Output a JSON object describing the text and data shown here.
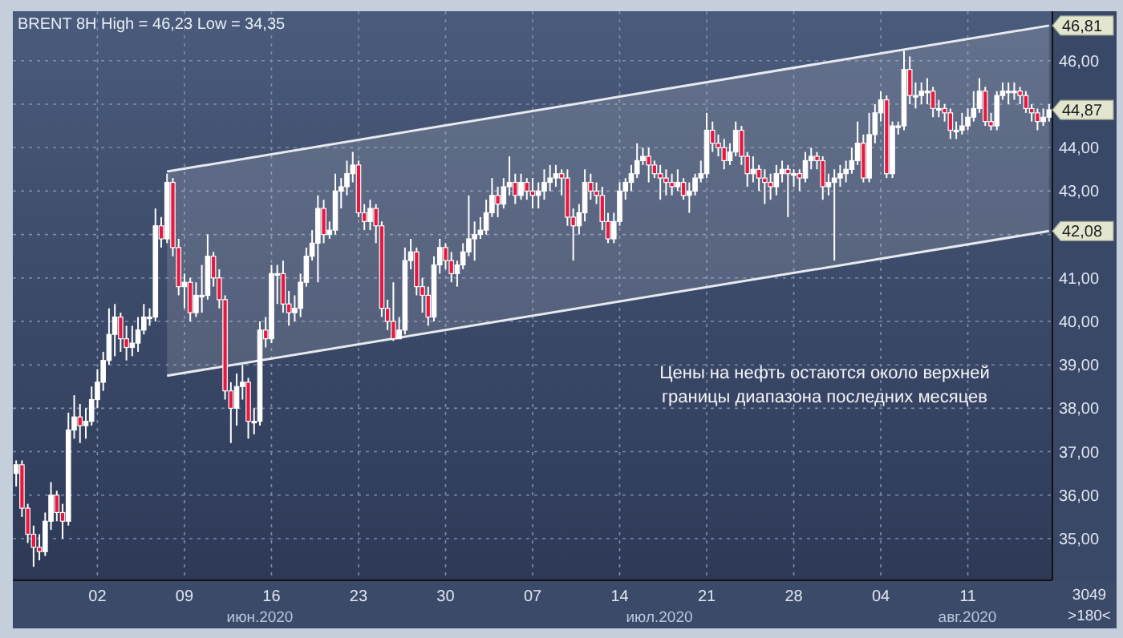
{
  "chart_data": {
    "type": "candlestick",
    "title": "BRENT 8H High = 46,23 Low = 34,35",
    "categories": [
      null,
      null,
      null,
      null,
      null,
      null,
      null,
      null,
      null,
      null,
      null,
      null,
      null,
      null,
      "02",
      null,
      null,
      null,
      null,
      null,
      null,
      null,
      null,
      null,
      null,
      null,
      null,
      null,
      null,
      "09",
      null,
      null,
      null,
      null,
      null,
      null,
      null,
      null,
      null,
      null,
      null,
      null,
      null,
      null,
      "16",
      null,
      null,
      null,
      null,
      null,
      null,
      null,
      null,
      null,
      null,
      null,
      null,
      null,
      null,
      "23",
      null,
      null,
      null,
      null,
      null,
      null,
      null,
      null,
      null,
      null,
      null,
      null,
      null,
      null,
      "30",
      null,
      null,
      null,
      null,
      null,
      null,
      null,
      null,
      null,
      null,
      null,
      null,
      null,
      null,
      "07",
      null,
      null,
      null,
      null,
      null,
      null,
      null,
      null,
      null,
      null,
      null,
      null,
      null,
      null,
      "14",
      null,
      null,
      null,
      null,
      null,
      null,
      null,
      null,
      null,
      null,
      null,
      null,
      null,
      null,
      "21",
      null,
      null,
      null,
      null,
      null,
      null,
      null,
      null,
      null,
      null,
      null,
      null,
      null,
      null,
      "28",
      null,
      null,
      null,
      null,
      null,
      null,
      null,
      null,
      null,
      null,
      null,
      null,
      null,
      null,
      "04",
      null,
      null,
      null,
      null,
      null,
      null,
      null,
      null,
      null,
      null,
      null,
      null,
      null,
      null,
      "11",
      null,
      null,
      null,
      null,
      null,
      null,
      null,
      null,
      null,
      null,
      null,
      null,
      null,
      null
    ],
    "ohlc": [
      [
        36.5,
        36.8,
        36.2,
        36.7
      ],
      [
        36.7,
        36.8,
        35.5,
        35.7
      ],
      [
        35.7,
        35.8,
        34.9,
        35.1
      ],
      [
        35.1,
        35.3,
        34.35,
        34.8
      ],
      [
        34.8,
        35.1,
        34.5,
        34.7
      ],
      [
        34.7,
        35.6,
        34.6,
        35.4
      ],
      [
        35.4,
        36.3,
        35.2,
        36.0
      ],
      [
        36.0,
        36.1,
        35.4,
        35.6
      ],
      [
        35.6,
        35.8,
        35.0,
        35.4
      ],
      [
        35.4,
        37.9,
        35.3,
        37.5
      ],
      [
        37.5,
        38.3,
        37.3,
        37.8
      ],
      [
        37.8,
        38.1,
        37.2,
        37.6
      ],
      [
        37.6,
        38.0,
        37.3,
        37.7
      ],
      [
        37.7,
        38.5,
        37.6,
        38.2
      ],
      [
        38.2,
        38.9,
        38.0,
        38.6
      ],
      [
        38.6,
        39.3,
        38.4,
        39.1
      ],
      [
        39.1,
        40.3,
        39.0,
        39.7
      ],
      [
        39.7,
        40.4,
        39.2,
        40.1
      ],
      [
        40.1,
        40.2,
        39.3,
        39.6
      ],
      [
        39.6,
        39.9,
        39.1,
        39.4
      ],
      [
        39.4,
        39.9,
        39.2,
        39.5
      ],
      [
        39.5,
        40.1,
        39.3,
        39.8
      ],
      [
        39.8,
        40.4,
        39.7,
        40.1
      ],
      [
        40.1,
        40.3,
        39.9,
        40.1
      ],
      [
        40.1,
        42.6,
        40.0,
        42.2
      ],
      [
        42.2,
        42.4,
        41.7,
        41.9
      ],
      [
        41.9,
        43.4,
        41.8,
        43.2
      ],
      [
        43.2,
        43.3,
        41.5,
        41.7
      ],
      [
        41.7,
        41.9,
        40.6,
        40.8
      ],
      [
        40.8,
        41.1,
        40.3,
        40.9
      ],
      [
        40.9,
        41.0,
        40.0,
        40.2
      ],
      [
        40.2,
        40.9,
        40.1,
        40.6
      ],
      [
        40.6,
        41.3,
        40.2,
        40.6
      ],
      [
        40.6,
        42.0,
        40.5,
        41.5
      ],
      [
        41.5,
        41.6,
        40.8,
        41.0
      ],
      [
        41.0,
        41.2,
        40.3,
        40.5
      ],
      [
        40.5,
        40.6,
        38.2,
        38.4
      ],
      [
        38.4,
        38.6,
        37.2,
        38.0
      ],
      [
        38.0,
        38.8,
        37.6,
        38.5
      ],
      [
        38.5,
        39.0,
        38.2,
        38.6
      ],
      [
        38.6,
        38.7,
        37.3,
        37.7
      ],
      [
        37.7,
        38.0,
        37.4,
        37.7
      ],
      [
        37.7,
        40.0,
        37.6,
        39.8
      ],
      [
        39.8,
        40.1,
        39.4,
        39.6
      ],
      [
        39.6,
        41.3,
        39.5,
        41.1
      ],
      [
        41.1,
        41.3,
        40.4,
        41.1
      ],
      [
        41.1,
        41.4,
        40.2,
        40.4
      ],
      [
        40.4,
        40.7,
        39.9,
        40.2
      ],
      [
        40.2,
        40.6,
        40.0,
        40.3
      ],
      [
        40.3,
        41.1,
        40.1,
        40.9
      ],
      [
        40.9,
        41.7,
        40.8,
        41.5
      ],
      [
        41.5,
        42.1,
        41.4,
        41.8
      ],
      [
        41.8,
        42.9,
        40.9,
        42.6
      ],
      [
        42.6,
        42.8,
        41.8,
        42.0
      ],
      [
        42.0,
        42.3,
        41.9,
        42.1
      ],
      [
        42.1,
        43.4,
        42.0,
        43.0
      ],
      [
        43.0,
        43.3,
        42.6,
        43.1
      ],
      [
        43.1,
        43.7,
        42.9,
        43.4
      ],
      [
        43.4,
        43.9,
        43.2,
        43.6
      ],
      [
        43.6,
        43.7,
        42.4,
        42.5
      ],
      [
        42.5,
        42.7,
        42.1,
        42.3
      ],
      [
        42.3,
        42.8,
        42.1,
        42.6
      ],
      [
        42.6,
        42.7,
        41.8,
        42.2
      ],
      [
        42.2,
        42.3,
        40.1,
        40.3
      ],
      [
        40.3,
        40.5,
        39.8,
        40.0
      ],
      [
        40.0,
        40.9,
        39.55,
        39.6
      ],
      [
        39.6,
        40.1,
        39.6,
        39.8
      ],
      [
        39.8,
        41.7,
        39.7,
        41.4
      ],
      [
        41.4,
        41.9,
        41.2,
        41.6
      ],
      [
        41.6,
        41.7,
        40.6,
        40.8
      ],
      [
        40.8,
        41.0,
        40.2,
        40.6
      ],
      [
        40.6,
        40.8,
        39.9,
        40.1
      ],
      [
        40.1,
        41.5,
        40.0,
        41.3
      ],
      [
        41.3,
        41.9,
        41.1,
        41.7
      ],
      [
        41.7,
        41.8,
        41.2,
        41.4
      ],
      [
        41.4,
        41.6,
        40.9,
        41.1
      ],
      [
        41.1,
        41.4,
        40.8,
        41.3
      ],
      [
        41.3,
        41.8,
        41.2,
        41.6
      ],
      [
        41.6,
        42.9,
        41.5,
        41.9
      ],
      [
        41.9,
        42.3,
        41.4,
        42.0
      ],
      [
        42.0,
        42.4,
        41.9,
        42.1
      ],
      [
        42.1,
        42.8,
        42.0,
        42.5
      ],
      [
        42.5,
        43.3,
        42.4,
        42.9
      ],
      [
        42.9,
        43.1,
        42.4,
        42.7
      ],
      [
        42.7,
        43.3,
        42.6,
        43.1
      ],
      [
        43.1,
        43.8,
        42.9,
        43.2
      ],
      [
        43.2,
        43.4,
        42.7,
        42.9
      ],
      [
        42.9,
        43.4,
        42.8,
        43.2
      ],
      [
        43.2,
        43.3,
        42.8,
        43.0
      ],
      [
        43.0,
        43.3,
        42.6,
        42.9
      ],
      [
        42.9,
        43.2,
        42.6,
        43.0
      ],
      [
        43.0,
        43.5,
        42.8,
        43.2
      ],
      [
        43.2,
        43.6,
        43.0,
        43.3
      ],
      [
        43.3,
        43.6,
        43.1,
        43.4
      ],
      [
        43.4,
        43.5,
        42.9,
        43.3
      ],
      [
        43.3,
        43.5,
        42.2,
        42.4
      ],
      [
        42.4,
        42.6,
        41.4,
        42.2
      ],
      [
        42.2,
        42.7,
        42.0,
        42.5
      ],
      [
        42.5,
        43.5,
        42.3,
        43.2
      ],
      [
        43.2,
        43.4,
        42.8,
        43.0
      ],
      [
        43.0,
        43.2,
        42.7,
        42.9
      ],
      [
        42.9,
        43.1,
        42.1,
        42.3
      ],
      [
        42.3,
        42.5,
        41.8,
        41.9
      ],
      [
        41.9,
        42.5,
        41.8,
        42.3
      ],
      [
        42.3,
        43.2,
        42.2,
        43.0
      ],
      [
        43.0,
        43.3,
        42.8,
        43.2
      ],
      [
        43.2,
        43.6,
        43.0,
        43.4
      ],
      [
        43.4,
        44.1,
        43.3,
        43.7
      ],
      [
        43.7,
        44.0,
        43.6,
        43.8
      ],
      [
        43.8,
        44.0,
        43.2,
        43.6
      ],
      [
        43.6,
        43.7,
        43.3,
        43.4
      ],
      [
        43.4,
        43.6,
        42.8,
        43.3
      ],
      [
        43.3,
        43.5,
        42.9,
        43.2
      ],
      [
        43.2,
        43.4,
        42.9,
        43.1
      ],
      [
        43.1,
        43.5,
        43.0,
        43.2
      ],
      [
        43.2,
        43.3,
        42.8,
        42.9
      ],
      [
        42.9,
        43.2,
        42.5,
        43.0
      ],
      [
        43.0,
        43.4,
        42.9,
        43.3
      ],
      [
        43.3,
        43.7,
        43.2,
        43.4
      ],
      [
        43.4,
        44.8,
        43.3,
        44.4
      ],
      [
        44.4,
        44.6,
        43.9,
        44.1
      ],
      [
        44.1,
        44.3,
        43.8,
        44.0
      ],
      [
        44.0,
        44.2,
        43.5,
        43.7
      ],
      [
        43.7,
        44.1,
        43.6,
        43.9
      ],
      [
        43.9,
        44.6,
        43.8,
        44.4
      ],
      [
        44.4,
        44.5,
        43.6,
        43.8
      ],
      [
        43.8,
        43.9,
        43.1,
        43.4
      ],
      [
        43.4,
        43.8,
        43.2,
        43.5
      ],
      [
        43.5,
        43.6,
        43.0,
        43.3
      ],
      [
        43.3,
        43.5,
        42.7,
        43.2
      ],
      [
        43.2,
        43.4,
        42.8,
        43.1
      ],
      [
        43.1,
        43.6,
        42.9,
        43.4
      ],
      [
        43.4,
        43.7,
        43.2,
        43.5
      ],
      [
        43.5,
        43.6,
        42.4,
        43.4
      ],
      [
        43.4,
        43.5,
        43.1,
        43.4
      ],
      [
        43.4,
        43.5,
        43.0,
        43.3
      ],
      [
        43.3,
        43.9,
        43.2,
        43.7
      ],
      [
        43.7,
        44.0,
        43.5,
        43.8
      ],
      [
        43.8,
        43.9,
        43.5,
        43.7
      ],
      [
        43.7,
        43.8,
        42.8,
        43.1
      ],
      [
        43.1,
        43.4,
        42.9,
        43.2
      ],
      [
        43.2,
        43.5,
        41.4,
        43.3
      ],
      [
        43.3,
        43.6,
        43.1,
        43.4
      ],
      [
        43.4,
        43.7,
        43.2,
        43.5
      ],
      [
        43.5,
        44.0,
        43.4,
        43.7
      ],
      [
        43.7,
        44.6,
        43.6,
        44.1
      ],
      [
        44.1,
        44.3,
        43.2,
        43.3
      ],
      [
        43.3,
        44.8,
        43.2,
        44.3
      ],
      [
        44.3,
        45.0,
        44.1,
        44.8
      ],
      [
        44.8,
        45.3,
        44.6,
        45.1
      ],
      [
        45.1,
        45.2,
        43.3,
        43.4
      ],
      [
        43.4,
        44.6,
        43.3,
        44.5
      ],
      [
        44.5,
        44.6,
        44.3,
        44.5
      ],
      [
        44.5,
        46.23,
        44.4,
        45.8
      ],
      [
        45.8,
        46.1,
        45.0,
        45.2
      ],
      [
        45.2,
        45.5,
        44.9,
        45.2
      ],
      [
        45.2,
        45.5,
        45.0,
        45.3
      ],
      [
        45.3,
        45.6,
        45.0,
        45.3
      ],
      [
        45.3,
        45.4,
        44.7,
        44.9
      ],
      [
        44.9,
        45.1,
        44.7,
        44.9
      ],
      [
        44.9,
        45.0,
        44.6,
        44.8
      ],
      [
        44.8,
        44.9,
        44.2,
        44.4
      ],
      [
        44.4,
        44.6,
        44.2,
        44.4
      ],
      [
        44.4,
        44.8,
        44.3,
        44.5
      ],
      [
        44.5,
        44.9,
        44.4,
        44.7
      ],
      [
        44.7,
        45.3,
        44.6,
        44.9
      ],
      [
        44.9,
        45.6,
        44.8,
        45.3
      ],
      [
        45.3,
        45.4,
        44.5,
        44.6
      ],
      [
        44.6,
        44.8,
        44.4,
        44.5
      ],
      [
        44.5,
        45.3,
        44.4,
        45.2
      ],
      [
        45.2,
        45.5,
        45.1,
        45.3
      ],
      [
        45.3,
        45.5,
        45.0,
        45.3
      ],
      [
        45.3,
        45.5,
        45.1,
        45.3
      ],
      [
        45.3,
        45.4,
        45.0,
        45.2
      ],
      [
        45.2,
        45.3,
        44.8,
        44.9
      ],
      [
        44.9,
        45.0,
        44.6,
        44.8
      ],
      [
        44.8,
        44.9,
        44.4,
        44.6
      ],
      [
        44.6,
        44.9,
        44.5,
        44.7
      ],
      [
        44.7,
        45.0,
        44.6,
        44.87
      ]
    ],
    "series": [
      {
        "type": "line",
        "color": "#e6e9ef",
        "values": [
          null,
          null,
          null,
          null,
          null,
          null,
          null,
          null,
          null,
          null,
          null,
          null,
          null,
          null,
          null,
          null,
          null,
          null,
          null,
          null,
          null,
          null,
          null,
          null,
          null,
          null,
          43.45,
          null,
          null,
          null,
          null,
          null,
          null,
          null,
          null,
          null,
          null,
          null,
          null,
          null,
          null,
          null,
          null,
          null,
          null,
          null,
          null,
          null,
          null,
          null,
          null,
          null,
          null,
          null,
          null,
          null,
          null,
          null,
          null,
          null,
          null,
          null,
          null,
          null,
          null,
          null,
          null,
          null,
          null,
          null,
          null,
          null,
          null,
          null,
          null,
          null,
          null,
          null,
          null,
          null,
          null,
          null,
          null,
          null,
          null,
          null,
          null,
          null,
          null,
          null,
          null,
          null,
          null,
          null,
          null,
          null,
          null,
          null,
          null,
          null,
          null,
          null,
          null,
          null,
          null,
          null,
          null,
          null,
          null,
          null,
          null,
          null,
          null,
          null,
          null,
          null,
          null,
          null,
          null,
          null,
          null,
          null,
          null,
          null,
          null,
          null,
          null,
          null,
          null,
          null,
          null,
          null,
          null,
          null,
          null,
          null,
          null,
          null,
          null,
          null,
          null,
          null,
          null,
          null,
          null,
          null,
          null,
          null,
          null,
          null,
          null,
          null,
          null,
          null,
          null,
          null,
          null,
          null,
          null,
          null,
          null,
          null,
          null,
          null,
          null,
          null,
          null,
          null,
          null,
          null,
          null,
          null,
          null,
          null,
          null,
          null,
          null,
          null,
          46.81
        ]
      },
      {
        "type": "line",
        "color": "#e6e9ef",
        "values": [
          null,
          null,
          null,
          null,
          null,
          null,
          null,
          null,
          null,
          null,
          null,
          null,
          null,
          null,
          null,
          null,
          null,
          null,
          null,
          null,
          null,
          null,
          null,
          null,
          null,
          null,
          38.75,
          null,
          null,
          null,
          null,
          null,
          null,
          null,
          null,
          null,
          null,
          null,
          null,
          null,
          null,
          null,
          null,
          null,
          null,
          null,
          null,
          null,
          null,
          null,
          null,
          null,
          null,
          null,
          null,
          null,
          null,
          null,
          null,
          null,
          null,
          null,
          null,
          null,
          null,
          null,
          null,
          null,
          null,
          null,
          null,
          null,
          null,
          null,
          null,
          null,
          null,
          null,
          null,
          null,
          null,
          null,
          null,
          null,
          null,
          null,
          null,
          null,
          null,
          null,
          null,
          null,
          null,
          null,
          null,
          null,
          null,
          null,
          null,
          null,
          null,
          null,
          null,
          null,
          null,
          null,
          null,
          null,
          null,
          null,
          null,
          null,
          null,
          null,
          null,
          null,
          null,
          null,
          null,
          null,
          null,
          null,
          null,
          null,
          null,
          null,
          null,
          null,
          null,
          null,
          null,
          null,
          null,
          null,
          null,
          null,
          null,
          null,
          null,
          null,
          null,
          null,
          null,
          null,
          null,
          null,
          null,
          null,
          null,
          null,
          null,
          null,
          null,
          null,
          null,
          null,
          null,
          null,
          null,
          null,
          null,
          null,
          null,
          null,
          null,
          null,
          null,
          null,
          null,
          null,
          null,
          null,
          null,
          null,
          null,
          null,
          null,
          null,
          42.08
        ]
      }
    ],
    "ylim": [
      34.04,
      47.14
    ],
    "yticks": [
      {
        "value": 35,
        "label": "35,00"
      },
      {
        "value": 36,
        "label": "36,00"
      },
      {
        "value": 37,
        "label": "37,00"
      },
      {
        "value": 38,
        "label": "38,00"
      },
      {
        "value": 39,
        "label": "39,00"
      },
      {
        "value": 40,
        "label": "40,00"
      },
      {
        "value": 41,
        "label": "41,00"
      },
      {
        "value": 42,
        "label": null
      },
      {
        "value": 43,
        "label": "43,00"
      },
      {
        "value": 44,
        "label": "44,00"
      },
      {
        "value": 45,
        "label": null
      },
      {
        "value": 46,
        "label": "46,00"
      }
    ],
    "grid": true,
    "annotations": [
      "Цены на нефть остаются около верхней\nграницы диапазона последних месяцев",
      "июн.2020",
      "июл.2020",
      "авг.2020",
      "3049",
      ">180<",
      {
        "text": "46,81",
        "y": 46.81
      },
      {
        "text": "44,87",
        "y": 44.87
      },
      {
        "text": "42,08",
        "y": 42.08
      }
    ]
  }
}
